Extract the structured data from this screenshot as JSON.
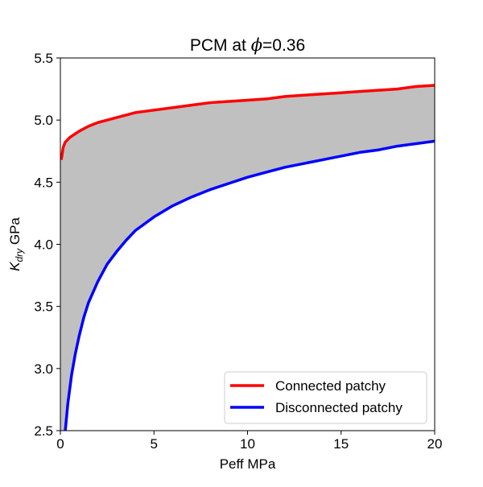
{
  "chart_data": {
    "type": "line",
    "title": "PCM at ϕ=0.36",
    "title_prefix": "PCM at ",
    "title_symbol": "ϕ",
    "title_suffix": "=0.36",
    "xlabel": "Peff MPa",
    "ylabel": "K",
    "ylabel_subscript": "dry",
    "ylabel_unit": " GPa",
    "xlim": [
      0,
      20
    ],
    "ylim": [
      2.5,
      5.5
    ],
    "x_ticks": [
      0,
      5,
      10,
      15,
      20
    ],
    "x_tick_labels": [
      "0",
      "5",
      "10",
      "15",
      "20"
    ],
    "y_ticks": [
      2.5,
      3.0,
      3.5,
      4.0,
      4.5,
      5.0,
      5.5
    ],
    "y_tick_labels": [
      "2.5",
      "3.0",
      "3.5",
      "4.0",
      "4.5",
      "5.0",
      "5.5"
    ],
    "grid": false,
    "legend_position": "lower-right",
    "fill_between": {
      "color": "#c0c0c0",
      "between": [
        "Connected patchy",
        "Disconnected patchy"
      ]
    },
    "series": [
      {
        "name": "Connected patchy",
        "color": "#ff0000",
        "x": [
          0.05,
          0.15,
          0.25,
          0.5,
          1,
          1.5,
          2,
          3,
          4,
          5,
          6,
          7,
          8,
          9,
          10,
          11,
          12,
          13,
          14,
          15,
          16,
          17,
          18,
          19,
          20
        ],
        "y": [
          4.68,
          4.78,
          4.82,
          4.86,
          4.91,
          4.95,
          4.98,
          5.02,
          5.06,
          5.08,
          5.1,
          5.12,
          5.14,
          5.15,
          5.16,
          5.17,
          5.19,
          5.2,
          5.21,
          5.22,
          5.23,
          5.24,
          5.25,
          5.27,
          5.28
        ]
      },
      {
        "name": "Disconnected patchy",
        "color": "#0000ff",
        "x": [
          0.25,
          0.4,
          0.6,
          0.8,
          1,
          1.25,
          1.5,
          2,
          2.5,
          3,
          3.5,
          4,
          5,
          6,
          7,
          8,
          9,
          10,
          11,
          12,
          13,
          14,
          15,
          16,
          17,
          18,
          19,
          20
        ],
        "y": [
          2.48,
          2.72,
          2.95,
          3.12,
          3.26,
          3.41,
          3.53,
          3.7,
          3.84,
          3.94,
          4.03,
          4.11,
          4.22,
          4.31,
          4.38,
          4.44,
          4.49,
          4.54,
          4.58,
          4.62,
          4.65,
          4.68,
          4.71,
          4.74,
          4.76,
          4.79,
          4.81,
          4.83
        ]
      }
    ]
  }
}
